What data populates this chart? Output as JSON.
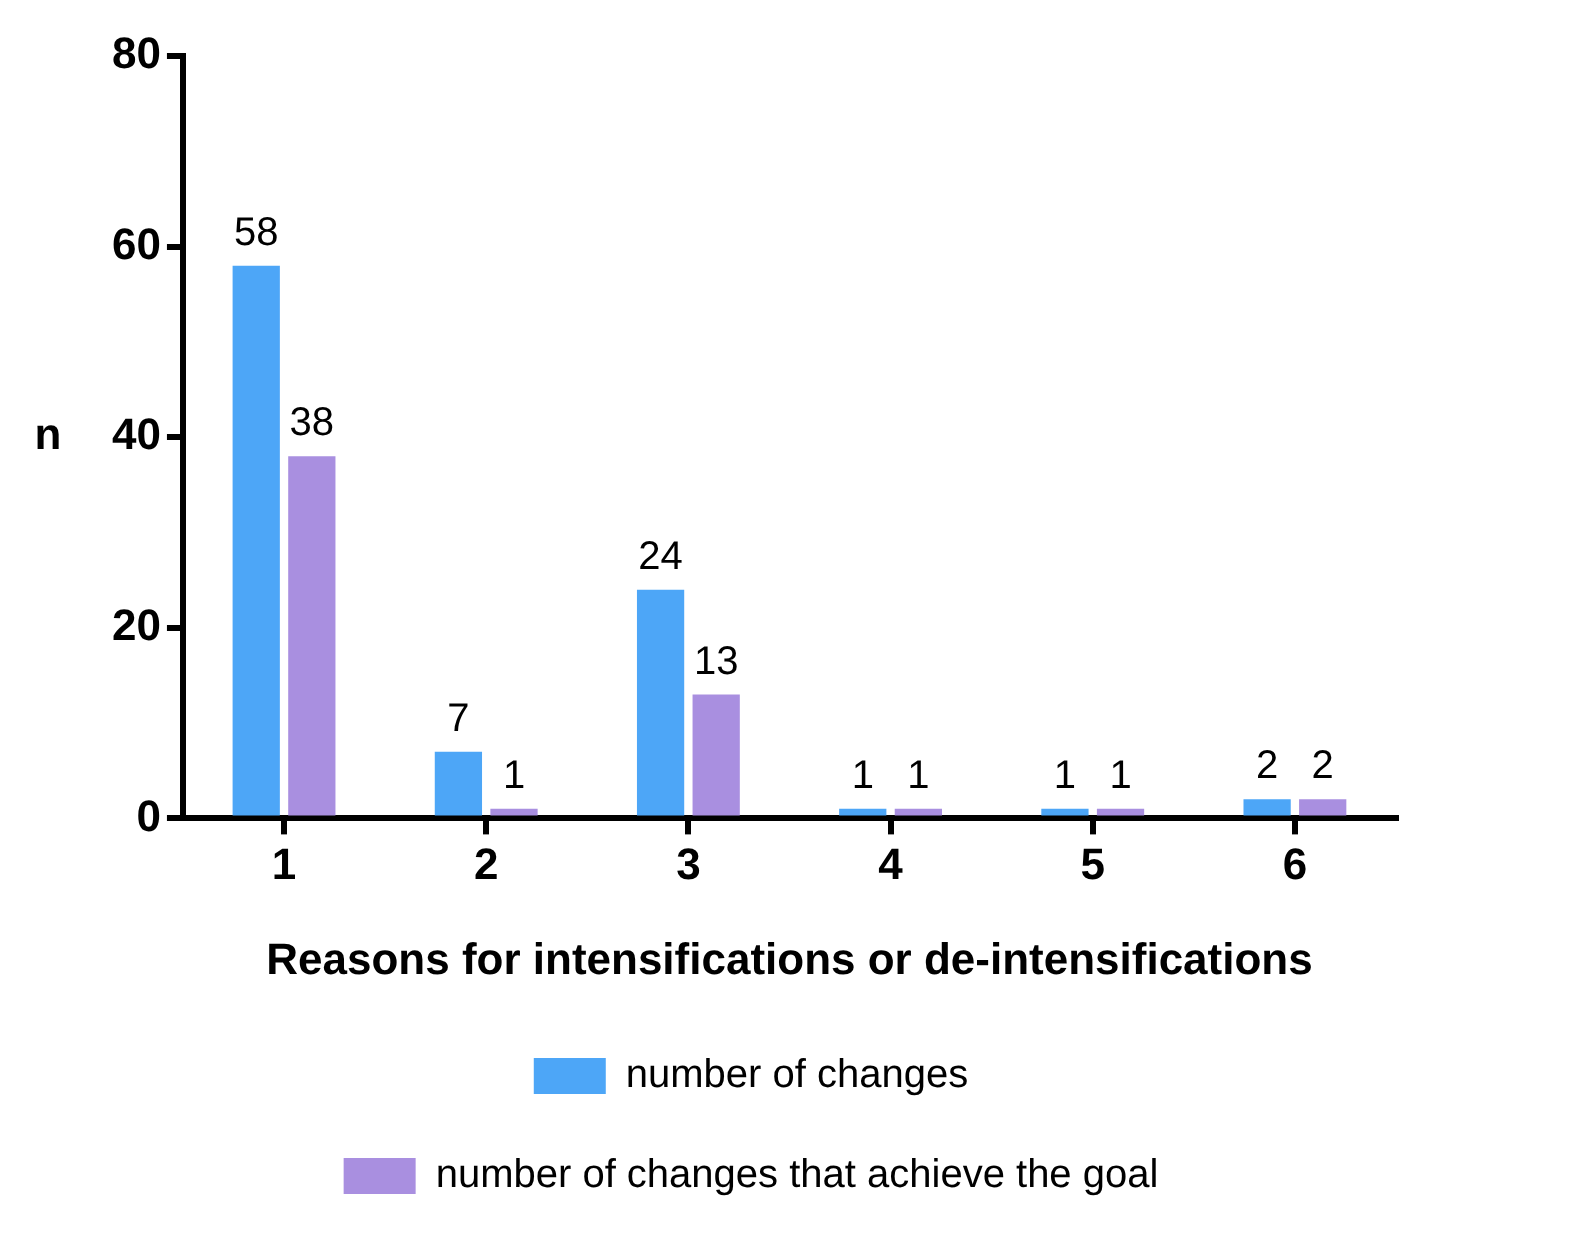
{
  "chart_data": {
    "type": "bar",
    "xlabel": "Reasons for intensifications or de-intensifications",
    "ylabel": "n",
    "categories": [
      "1",
      "2",
      "3",
      "4",
      "5",
      "6"
    ],
    "series": [
      {
        "name": "number of changes",
        "color": "#4da6f7",
        "values": [
          58,
          7,
          24,
          1,
          1,
          2
        ]
      },
      {
        "name": "number of changes that achieve the goal",
        "color": "#a98fe0",
        "values": [
          38,
          1,
          13,
          1,
          1,
          2
        ]
      }
    ],
    "ylim": [
      0,
      80
    ],
    "yticks": [
      0,
      20,
      40,
      60,
      80
    ],
    "grid": false,
    "legend": "bottom",
    "data_labels": true
  }
}
